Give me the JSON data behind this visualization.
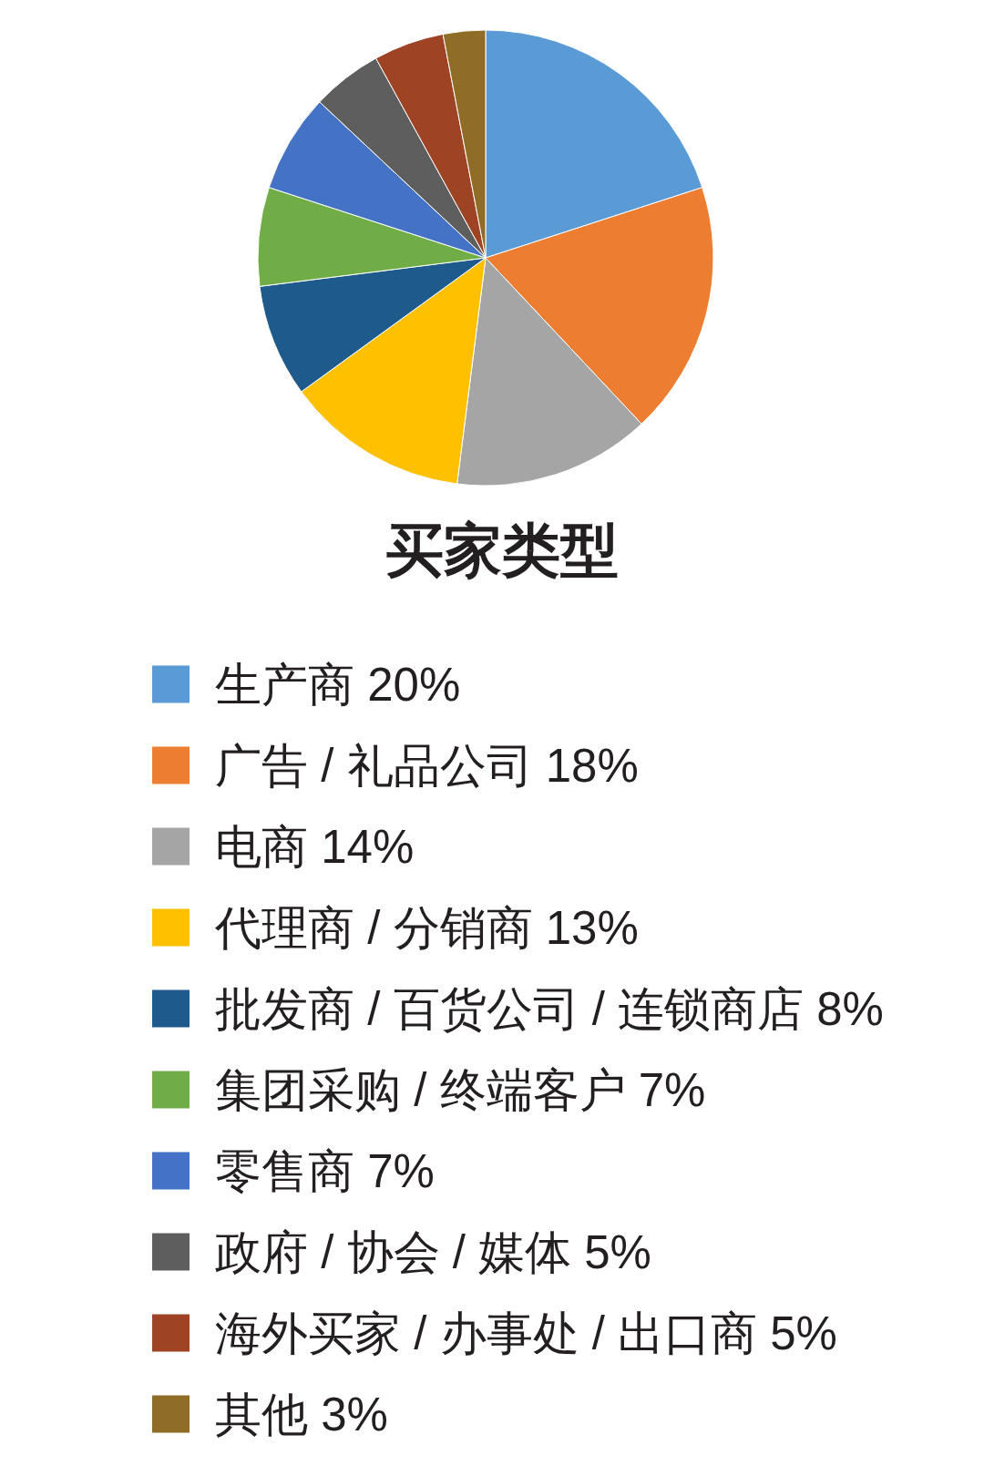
{
  "chart_data": {
    "type": "pie",
    "title": "买家类型",
    "categories": [
      "生产商",
      "广告 / 礼品公司",
      "电商",
      "代理商 / 分销商",
      "批发商 / 百货公司 / 连锁商店",
      "集团采购 / 终端客户",
      "零售商",
      "政府 / 协会 / 媒体",
      "海外买家 / 办事处 / 出口商",
      "其他"
    ],
    "values": [
      20,
      18,
      14,
      13,
      8,
      7,
      7,
      5,
      5,
      3
    ],
    "value_labels": [
      "20%",
      "18%",
      "14%",
      "13%",
      "8%",
      "7%",
      "7%",
      "5%",
      "5%",
      "3%"
    ],
    "colors": [
      "#5b9bd5",
      "#ed7d31",
      "#a5a5a5",
      "#ffc000",
      "#1f5a8c",
      "#70ad47",
      "#4472c4",
      "#5e5e5e",
      "#9e4323",
      "#8f6d26"
    ],
    "legend": "bottom"
  }
}
